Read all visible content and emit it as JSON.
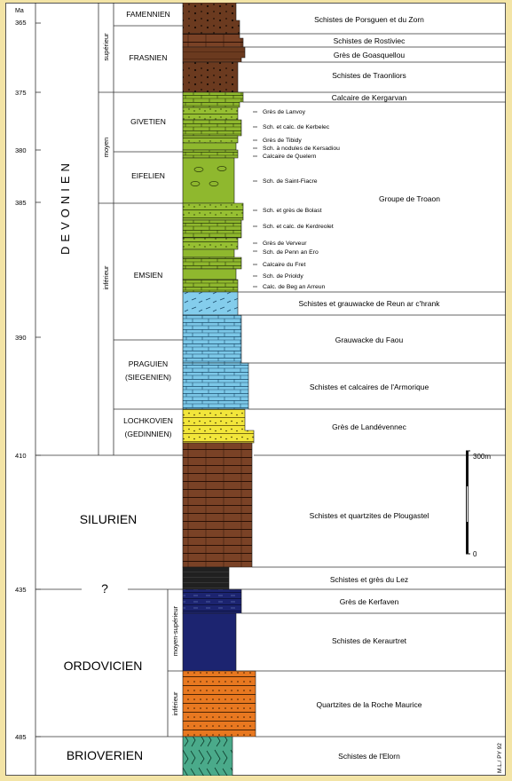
{
  "unit_label": "Ma",
  "age_ticks": [
    "365",
    "375",
    "380",
    "385",
    "390",
    "410",
    "435",
    "485"
  ],
  "systems": [
    {
      "name": "DEVONIEN",
      "vertical": true
    },
    {
      "name": "SILURIEN"
    },
    {
      "name": "ORDOVICIEN"
    },
    {
      "name": "BRIOVERIEN"
    }
  ],
  "question_mark": "?",
  "series": [
    {
      "name": "supérieur"
    },
    {
      "name": "moyen"
    },
    {
      "name": "inférieur"
    },
    {
      "name": "moyen-supérieur"
    },
    {
      "name": "inférieur"
    }
  ],
  "stages": [
    {
      "lines": [
        "FAMENNIEN"
      ]
    },
    {
      "lines": [
        "FRASNIEN"
      ]
    },
    {
      "lines": [
        "GIVETIEN"
      ]
    },
    {
      "lines": [
        "EIFELIEN"
      ]
    },
    {
      "lines": [
        "EMSIEN"
      ]
    },
    {
      "lines": [
        "PRAGUIEN",
        "(SIEGENIEN)"
      ]
    },
    {
      "lines": [
        "LOCHKOVIEN",
        "(GEDINNIEN)"
      ]
    }
  ],
  "lithology_colors": {
    "schist_brown": "#6b3a1f",
    "sandstone_brown": "#8a4a28",
    "limestone_green": "#8fb82e",
    "greywacke_blue": "#7cc8e8",
    "sandstone_yellow": "#f2e63a",
    "dark_black": "#202020",
    "dark_blue": "#1c2470",
    "quartzite_orange": "#e87820",
    "briov_teal": "#4aaa8a"
  },
  "formations": [
    "Schistes de Porsguen et du Zorn",
    "Schistes de Rostiviec",
    "Grès de Goasquellou",
    "Schistes de Traonliors",
    "Calcaire de Kergarvan",
    "Schistes et grauwacke de Reun ar c'hrank",
    "Grauwacke du Faou",
    "Schistes et calcaires de l'Armorique",
    "Grès de Landévennec",
    "Schistes et quartzites de Plougastel",
    "Schistes et grès du Lez",
    "Grès de Kerfaven",
    "Schistes de Keraurtret",
    "Quartzites de la Roche Maurice",
    "Schistes de l'Elorn"
  ],
  "members": [
    "Grès de Lanvoy",
    "Sch. et calc. de Kerbelec",
    "Grès de Tibidy",
    "Sch. à nodules de Kersadiou",
    "Calcaire de Quelern",
    "Sch. de Saint-Fiacre",
    "Sch. et grès de Bolast",
    "Sch. et calc. de Kerdreolet",
    "Grès de Verveur",
    "Sch. de Penn an Ero",
    "Calcaire du Fret",
    "Sch. de Prioldy",
    "Calc. de Beg an Arreun"
  ],
  "group_label": "Groupe de Troaon",
  "scale_bar": {
    "top_label": "300m",
    "bottom_label": "0"
  },
  "credit": "M.L./ PY 92"
}
